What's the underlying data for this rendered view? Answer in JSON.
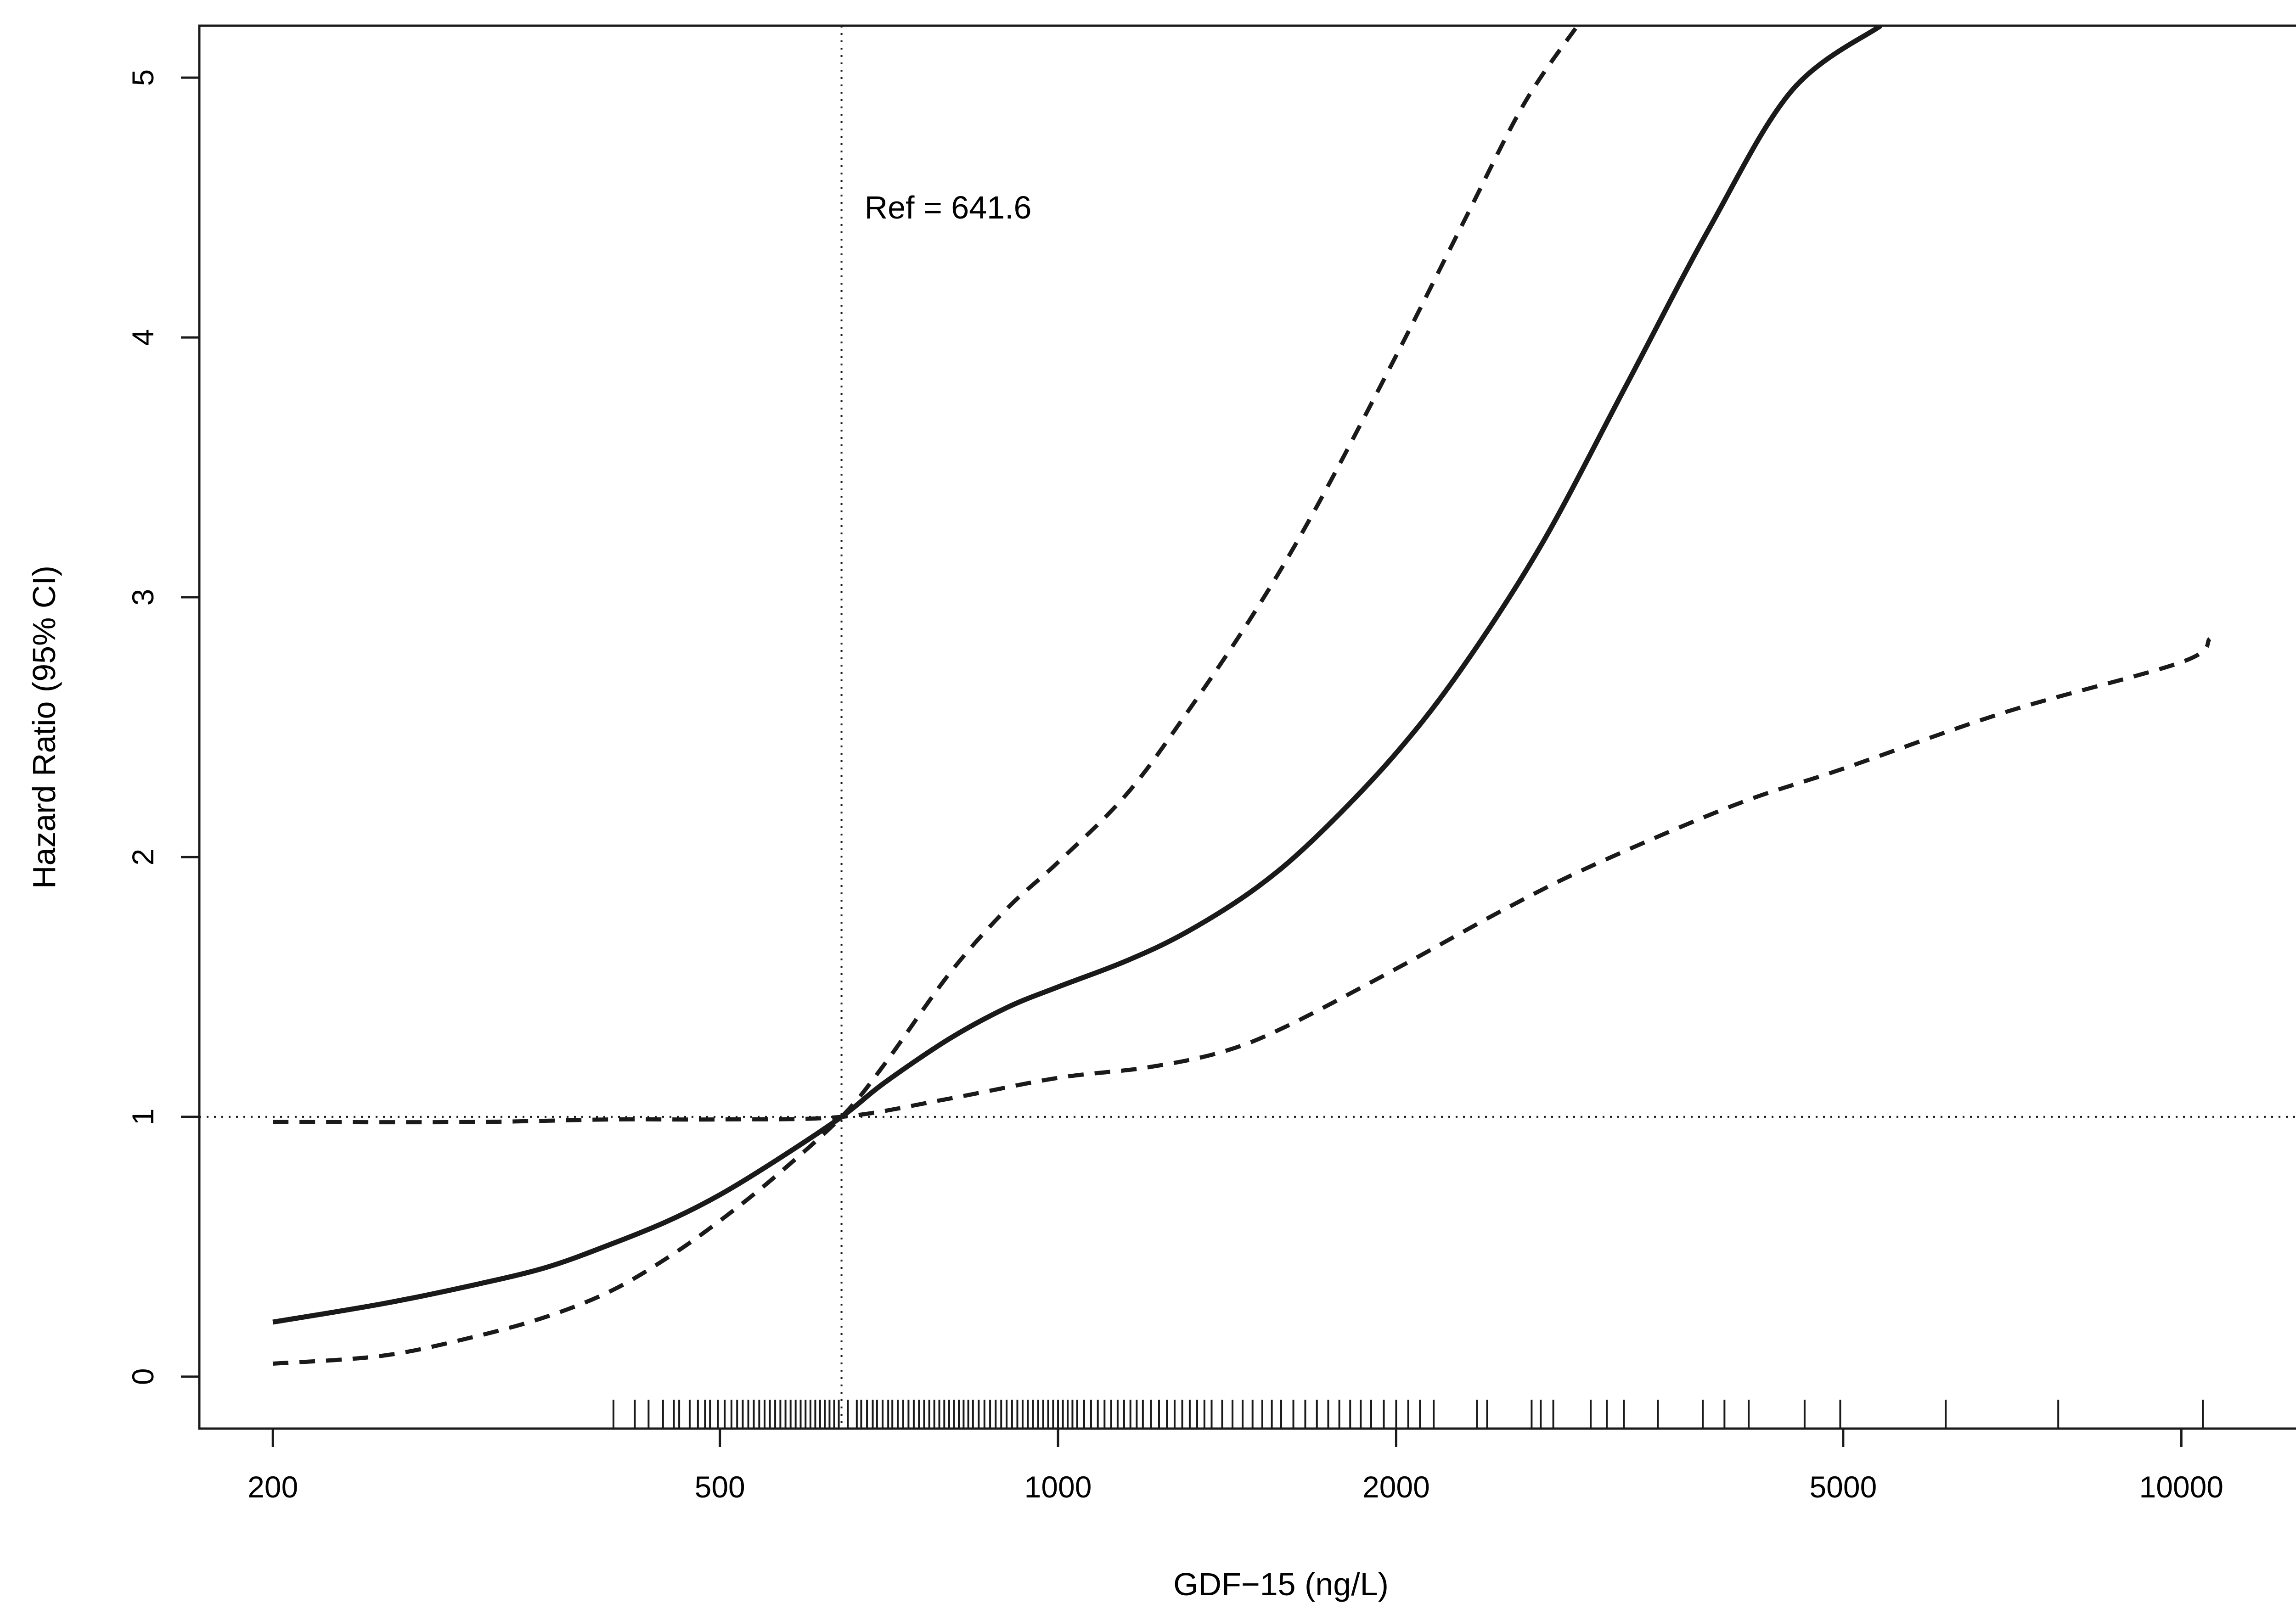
{
  "chart_data": {
    "type": "line",
    "title": "",
    "xlabel": "GDF−15 (ng/L)",
    "ylabel": "Hazard Ratio (95% CI)",
    "x_scale": "log",
    "xlim": [
      172,
      14500
    ],
    "ylim": [
      -0.2,
      5.2
    ],
    "x_ticks": [
      200,
      500,
      1000,
      2000,
      5000,
      10000
    ],
    "x_tick_labels": [
      "200",
      "500",
      "1000",
      "2000",
      "5000",
      "10000"
    ],
    "y_ticks": [
      0,
      1,
      2,
      3,
      4,
      5
    ],
    "y_tick_labels": [
      "0",
      "1",
      "2",
      "3",
      "4",
      "5"
    ],
    "grid": false,
    "reference": {
      "x": 641.6,
      "y": 1,
      "label": "Ref = 641.6",
      "label_y": 4.5
    },
    "series": [
      {
        "style": "solid",
        "color": "#1a1a1a",
        "points": [
          [
            200,
            0.21
          ],
          [
            250,
            0.28
          ],
          [
            300,
            0.35
          ],
          [
            350,
            0.42
          ],
          [
            400,
            0.51
          ],
          [
            450,
            0.6
          ],
          [
            500,
            0.7
          ],
          [
            560,
            0.83
          ],
          [
            641.6,
            1.0
          ],
          [
            700,
            1.13
          ],
          [
            800,
            1.3
          ],
          [
            900,
            1.42
          ],
          [
            1000,
            1.5
          ],
          [
            1150,
            1.6
          ],
          [
            1300,
            1.71
          ],
          [
            1500,
            1.88
          ],
          [
            1700,
            2.08
          ],
          [
            2000,
            2.4
          ],
          [
            2300,
            2.74
          ],
          [
            2700,
            3.21
          ],
          [
            3200,
            3.81
          ],
          [
            3800,
            4.42
          ],
          [
            4500,
            4.95
          ],
          [
            5400,
            5.2
          ]
        ]
      },
      {
        "style": "dashed",
        "color": "#1a1a1a",
        "points": [
          [
            200,
            0.05
          ],
          [
            250,
            0.08
          ],
          [
            300,
            0.15
          ],
          [
            350,
            0.23
          ],
          [
            400,
            0.33
          ],
          [
            450,
            0.46
          ],
          [
            500,
            0.6
          ],
          [
            560,
            0.77
          ],
          [
            641.6,
            1.0
          ],
          [
            700,
            1.2
          ],
          [
            800,
            1.55
          ],
          [
            900,
            1.8
          ],
          [
            1000,
            1.98
          ],
          [
            1150,
            2.24
          ],
          [
            1300,
            2.55
          ],
          [
            1500,
            2.95
          ],
          [
            1700,
            3.35
          ],
          [
            2000,
            3.93
          ],
          [
            2300,
            4.45
          ],
          [
            2600,
            4.9
          ],
          [
            2900,
            5.2
          ]
        ]
      },
      {
        "style": "dashed",
        "color": "#1a1a1a",
        "points": [
          [
            200,
            0.98
          ],
          [
            300,
            0.98
          ],
          [
            400,
            0.99
          ],
          [
            500,
            0.99
          ],
          [
            641.6,
            1.0
          ],
          [
            800,
            1.07
          ],
          [
            1000,
            1.15
          ],
          [
            1200,
            1.19
          ],
          [
            1400,
            1.25
          ],
          [
            1600,
            1.35
          ],
          [
            2000,
            1.57
          ],
          [
            2500,
            1.8
          ],
          [
            3000,
            1.97
          ],
          [
            4000,
            2.2
          ],
          [
            5000,
            2.34
          ],
          [
            7000,
            2.56
          ],
          [
            10000,
            2.75
          ],
          [
            10600,
            2.84
          ]
        ]
      }
    ],
    "rug": [
      402,
      420,
      432,
      445,
      455,
      460,
      470,
      478,
      485,
      490,
      498,
      505,
      512,
      518,
      524,
      530,
      536,
      542,
      548,
      554,
      560,
      566,
      572,
      578,
      584,
      590,
      596,
      602,
      608,
      614,
      620,
      626,
      632,
      638,
      650,
      662,
      668,
      676,
      684,
      690,
      698,
      706,
      712,
      720,
      728,
      736,
      744,
      752,
      760,
      768,
      776,
      784,
      792,
      800,
      808,
      816,
      824,
      832,
      840,
      850,
      860,
      870,
      880,
      890,
      900,
      910,
      920,
      930,
      940,
      950,
      960,
      970,
      980,
      990,
      1000,
      1010,
      1020,
      1030,
      1040,
      1055,
      1070,
      1085,
      1100,
      1115,
      1130,
      1145,
      1160,
      1175,
      1190,
      1210,
      1230,
      1250,
      1270,
      1290,
      1310,
      1330,
      1350,
      1370,
      1400,
      1430,
      1460,
      1490,
      1520,
      1550,
      1580,
      1620,
      1660,
      1700,
      1740,
      1780,
      1820,
      1860,
      1900,
      1950,
      2000,
      2050,
      2100,
      2160,
      2360,
      2410,
      2640,
      2690,
      2760,
      2980,
      3080,
      3190,
      3420,
      3750,
      3920,
      4120,
      4620,
      4970,
      6170,
      7770,
      10450
    ]
  }
}
